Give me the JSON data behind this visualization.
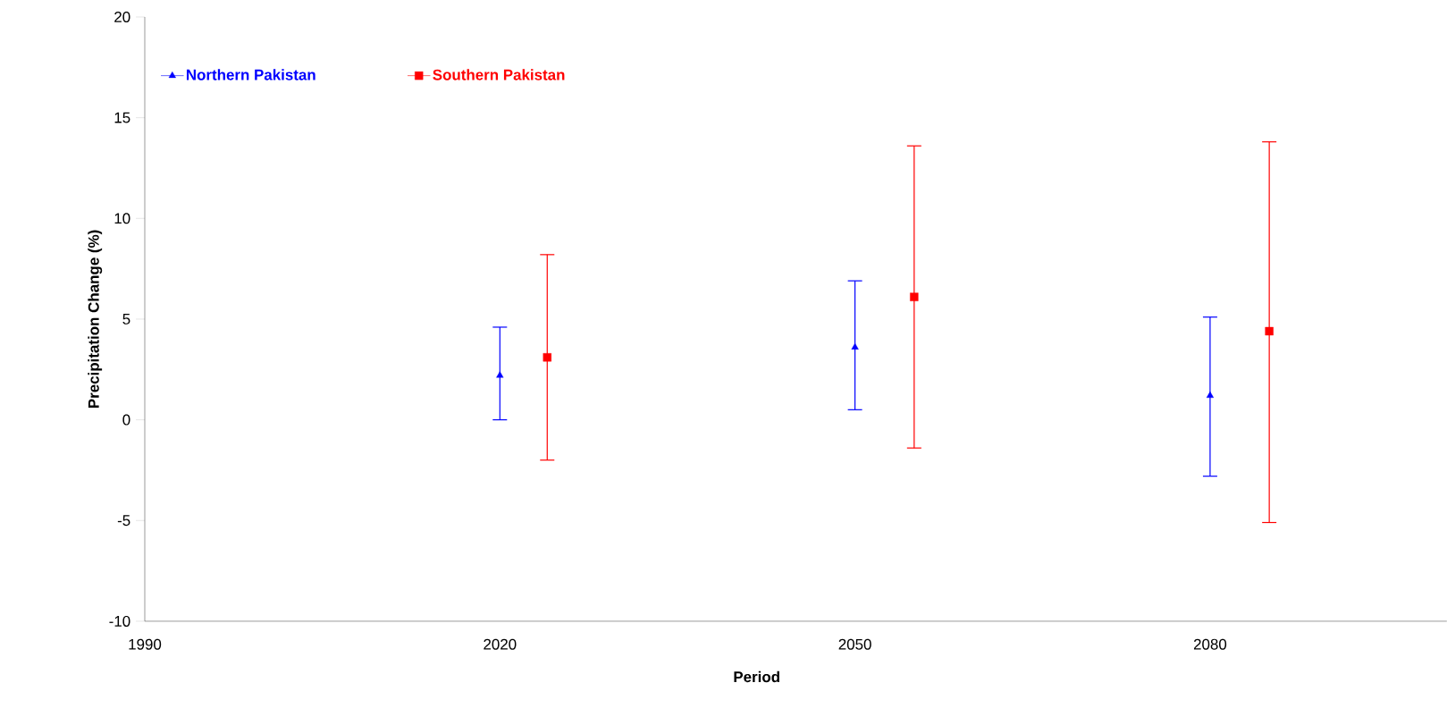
{
  "chart_data": {
    "type": "scatter",
    "xlabel": "Period",
    "ylabel": "Precipitation Change (%)",
    "xlim": [
      1990,
      2100
    ],
    "xticks": [
      1990,
      2020,
      2050,
      2080
    ],
    "ylim": [
      -10,
      20
    ],
    "yticks": [
      -10,
      -5,
      0,
      5,
      10,
      15,
      20
    ],
    "grid": false,
    "legend": "top left",
    "series": [
      {
        "name": "Northern Pakistan",
        "color": "#0000ff",
        "marker": "triangle",
        "x": [
          2020,
          2050,
          2080
        ],
        "values": [
          2.2,
          3.6,
          1.2
        ],
        "errors": [
          [
            0,
            4.6
          ],
          [
            0.5,
            6.9
          ],
          [
            -2.8,
            5.1
          ]
        ]
      },
      {
        "name": "Southern Pakistan",
        "color": "#ff0000",
        "marker": "square",
        "x": [
          2024,
          2055,
          2085
        ],
        "values": [
          3.1,
          6.1,
          4.4
        ],
        "errors": [
          [
            -2,
            8.2
          ],
          [
            -1.4,
            13.6
          ],
          [
            -5.1,
            13.8
          ]
        ]
      }
    ]
  }
}
